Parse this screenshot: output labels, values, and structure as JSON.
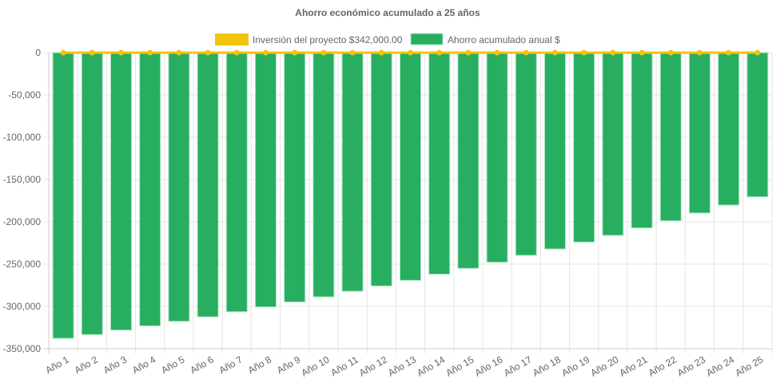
{
  "chart_data": {
    "type": "bar",
    "title": "Ahorro económico acumulado a 25 años",
    "xlabel": "",
    "ylabel": "",
    "ylim": [
      -350000,
      0
    ],
    "yticks": [
      0,
      -50000,
      -100000,
      -150000,
      -200000,
      -250000,
      -300000,
      -350000
    ],
    "ytick_labels": [
      "0",
      "-50,000",
      "-100,000",
      "-150,000",
      "-200,000",
      "-250,000",
      "-300,000",
      "-350,000"
    ],
    "grid": true,
    "legend_position": "top",
    "categories": [
      "Año 1",
      "Año 2",
      "Año 3",
      "Año 4",
      "Año 5",
      "Año 6",
      "Año 7",
      "Año 8",
      "Año 9",
      "Año 10",
      "Año 11",
      "Año 12",
      "Año 13",
      "Año 14",
      "Año 15",
      "Año 16",
      "Año 17",
      "Año 18",
      "Año 19",
      "Año 20",
      "Año 21",
      "Año 22",
      "Año 23",
      "Año 24",
      "Año 25"
    ],
    "series": [
      {
        "name": "Inversión del proyecto $342,000.00",
        "type": "line",
        "color": "#f1c40f",
        "values": [
          0,
          0,
          0,
          0,
          0,
          0,
          0,
          0,
          0,
          0,
          0,
          0,
          0,
          0,
          0,
          0,
          0,
          0,
          0,
          0,
          0,
          0,
          0,
          0,
          0
        ]
      },
      {
        "name": "Ahorro acumulado anual $",
        "type": "bar",
        "color": "#27ae60",
        "values": [
          -337700,
          -333300,
          -328000,
          -323000,
          -317600,
          -312300,
          -306300,
          -300600,
          -294700,
          -288700,
          -282100,
          -275800,
          -269200,
          -261900,
          -255000,
          -247800,
          -239600,
          -232100,
          -223900,
          -216000,
          -207200,
          -198700,
          -189600,
          -180200,
          -170400
        ]
      }
    ]
  }
}
